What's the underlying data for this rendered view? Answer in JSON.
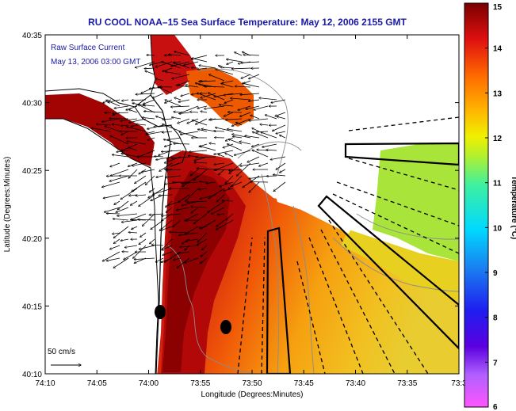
{
  "title": "RU COOL  NOAA–15  Sea Surface Temperature:  May 12, 2006 2155 GMT",
  "inset": {
    "line1": "Raw Surface Current",
    "line2": "May 13, 2006 03:00 GMT"
  },
  "axes": {
    "xlabel": "Longitude (Degrees:Minutes)",
    "ylabel": "Latitude (Degrees:Minutes)",
    "xticks": [
      "74:10",
      "74:05",
      "74:00",
      "73:55",
      "73:50",
      "73:45",
      "73:40",
      "73:35",
      "73:3"
    ],
    "yticks": [
      "40:35",
      "40:30",
      "40:25",
      "40:20",
      "40:15",
      "40:10"
    ]
  },
  "scale_label": "50 cm/s",
  "colorbar": {
    "label": "Temperature (°C)",
    "ticks": [
      "15",
      "14",
      "13",
      "12",
      "11",
      "10",
      "9",
      "8",
      "7",
      "6"
    ],
    "range": [
      6,
      15
    ]
  },
  "colors": {
    "title": "#1a1aa8",
    "land": "#ffffff",
    "coast": "#000000",
    "bathymetry": "#8c8c8c",
    "warm": "#8b0000",
    "hot": "#c81010",
    "mid": "#f06a00",
    "cool": "#aee83a"
  }
}
